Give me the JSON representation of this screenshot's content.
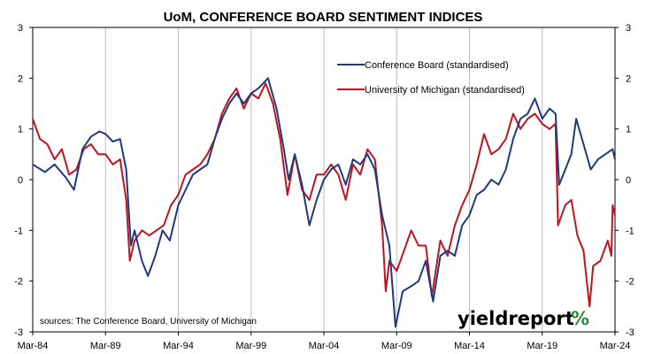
{
  "chart_data": {
    "type": "line",
    "title": "UoM, CONFERENCE BOARD SENTIMENT INDICES",
    "source": "sources: The Conference Board, University of Michigan",
    "brand": {
      "text": "yieldreport",
      "symbol": "%",
      "symbol_color": "#2e8b3a"
    },
    "x_ticks": [
      "Mar-84",
      "Mar-89",
      "Mar-94",
      "Mar-99",
      "Mar-04",
      "Mar-09",
      "Mar-14",
      "Mar-19",
      "Mar-24"
    ],
    "y_ticks_left": [
      "3",
      "2",
      "1",
      "0",
      "-1",
      "-2",
      "-3"
    ],
    "y_ticks_right": [
      "3",
      "2",
      "1",
      "0",
      "-1",
      "-2",
      "-3"
    ],
    "xlim": [
      "1984-03",
      "2024-03"
    ],
    "ylim": [
      -3,
      3
    ],
    "grid": "vertical",
    "legend_position": "top-right",
    "series": [
      {
        "name": "Conference Board (standardised)",
        "color": "#1f3a7a",
        "points": [
          [
            "1984-03",
            0.3
          ],
          [
            "1985-01",
            0.15
          ],
          [
            "1985-09",
            0.3
          ],
          [
            "1986-06",
            0.05
          ],
          [
            "1987-01",
            -0.2
          ],
          [
            "1987-08",
            0.6
          ],
          [
            "1988-03",
            0.85
          ],
          [
            "1988-10",
            0.95
          ],
          [
            "1989-03",
            0.9
          ],
          [
            "1989-09",
            0.75
          ],
          [
            "1990-03",
            0.8
          ],
          [
            "1990-08",
            0.2
          ],
          [
            "1990-12",
            -1.3
          ],
          [
            "1991-03",
            -1.0
          ],
          [
            "1991-09",
            -1.6
          ],
          [
            "1992-02",
            -1.9
          ],
          [
            "1992-08",
            -1.5
          ],
          [
            "1993-02",
            -1.0
          ],
          [
            "1993-08",
            -1.2
          ],
          [
            "1994-03",
            -0.5
          ],
          [
            "1994-09",
            -0.2
          ],
          [
            "1995-03",
            0.1
          ],
          [
            "1995-09",
            0.2
          ],
          [
            "1996-03",
            0.3
          ],
          [
            "1996-09",
            0.8
          ],
          [
            "1997-03",
            1.2
          ],
          [
            "1997-09",
            1.5
          ],
          [
            "1998-03",
            1.7
          ],
          [
            "1998-09",
            1.5
          ],
          [
            "1999-03",
            1.7
          ],
          [
            "1999-09",
            1.8
          ],
          [
            "2000-05",
            2.0
          ],
          [
            "2000-12",
            1.4
          ],
          [
            "2001-06",
            0.6
          ],
          [
            "2001-10",
            0.0
          ],
          [
            "2002-03",
            0.5
          ],
          [
            "2002-09",
            -0.1
          ],
          [
            "2003-03",
            -0.9
          ],
          [
            "2003-09",
            -0.4
          ],
          [
            "2004-03",
            0.0
          ],
          [
            "2004-09",
            0.2
          ],
          [
            "2005-03",
            0.3
          ],
          [
            "2005-09",
            -0.1
          ],
          [
            "2006-03",
            0.4
          ],
          [
            "2006-09",
            0.3
          ],
          [
            "2007-03",
            0.5
          ],
          [
            "2007-09",
            0.2
          ],
          [
            "2008-03",
            -0.7
          ],
          [
            "2008-09",
            -1.3
          ],
          [
            "2009-02",
            -2.9
          ],
          [
            "2009-08",
            -2.2
          ],
          [
            "2010-03",
            -2.1
          ],
          [
            "2010-09",
            -2.0
          ],
          [
            "2011-03",
            -1.6
          ],
          [
            "2011-09",
            -2.4
          ],
          [
            "2012-03",
            -1.5
          ],
          [
            "2012-09",
            -1.4
          ],
          [
            "2013-03",
            -1.5
          ],
          [
            "2013-09",
            -0.9
          ],
          [
            "2014-03",
            -0.7
          ],
          [
            "2014-09",
            -0.3
          ],
          [
            "2015-03",
            -0.2
          ],
          [
            "2015-09",
            0.0
          ],
          [
            "2016-03",
            -0.1
          ],
          [
            "2016-09",
            0.2
          ],
          [
            "2017-03",
            0.8
          ],
          [
            "2017-09",
            1.2
          ],
          [
            "2018-03",
            1.3
          ],
          [
            "2018-09",
            1.6
          ],
          [
            "2019-03",
            1.2
          ],
          [
            "2019-09",
            1.4
          ],
          [
            "2020-02",
            1.3
          ],
          [
            "2020-05",
            -0.1
          ],
          [
            "2020-10",
            0.2
          ],
          [
            "2021-03",
            0.5
          ],
          [
            "2021-07",
            1.2
          ],
          [
            "2022-01",
            0.7
          ],
          [
            "2022-07",
            0.2
          ],
          [
            "2023-01",
            0.4
          ],
          [
            "2023-07",
            0.5
          ],
          [
            "2024-01",
            0.6
          ],
          [
            "2024-03",
            0.4
          ]
        ]
      },
      {
        "name": "University of Michigan (standardised)",
        "color": "#c1121f",
        "points": [
          [
            "1984-03",
            1.2
          ],
          [
            "1984-09",
            0.8
          ],
          [
            "1985-03",
            0.7
          ],
          [
            "1985-09",
            0.4
          ],
          [
            "1986-03",
            0.6
          ],
          [
            "1986-09",
            0.1
          ],
          [
            "1987-03",
            0.2
          ],
          [
            "1987-09",
            0.6
          ],
          [
            "1988-03",
            0.7
          ],
          [
            "1988-09",
            0.5
          ],
          [
            "1989-03",
            0.5
          ],
          [
            "1989-09",
            0.3
          ],
          [
            "1990-03",
            0.4
          ],
          [
            "1990-08",
            -0.4
          ],
          [
            "1990-11",
            -1.6
          ],
          [
            "1991-03",
            -1.2
          ],
          [
            "1991-09",
            -1.0
          ],
          [
            "1992-03",
            -1.1
          ],
          [
            "1992-09",
            -1.0
          ],
          [
            "1993-03",
            -0.9
          ],
          [
            "1993-09",
            -0.5
          ],
          [
            "1994-03",
            -0.3
          ],
          [
            "1994-09",
            0.1
          ],
          [
            "1995-03",
            0.2
          ],
          [
            "1995-09",
            0.3
          ],
          [
            "1996-03",
            0.5
          ],
          [
            "1996-09",
            0.8
          ],
          [
            "1997-03",
            1.3
          ],
          [
            "1997-09",
            1.6
          ],
          [
            "1998-03",
            1.8
          ],
          [
            "1998-09",
            1.4
          ],
          [
            "1999-03",
            1.7
          ],
          [
            "1999-09",
            1.6
          ],
          [
            "2000-03",
            1.9
          ],
          [
            "2000-09",
            1.5
          ],
          [
            "2001-03",
            0.8
          ],
          [
            "2001-09",
            -0.3
          ],
          [
            "2002-03",
            0.5
          ],
          [
            "2002-09",
            -0.2
          ],
          [
            "2003-03",
            -0.4
          ],
          [
            "2003-09",
            0.1
          ],
          [
            "2004-03",
            0.1
          ],
          [
            "2004-09",
            0.3
          ],
          [
            "2005-03",
            0.1
          ],
          [
            "2005-09",
            -0.4
          ],
          [
            "2006-03",
            0.3
          ],
          [
            "2006-09",
            0.1
          ],
          [
            "2007-03",
            0.6
          ],
          [
            "2007-09",
            0.4
          ],
          [
            "2008-03",
            -0.9
          ],
          [
            "2008-06",
            -2.2
          ],
          [
            "2008-09",
            -1.6
          ],
          [
            "2009-03",
            -1.8
          ],
          [
            "2009-09",
            -1.4
          ],
          [
            "2010-03",
            -1.0
          ],
          [
            "2010-09",
            -1.3
          ],
          [
            "2011-03",
            -1.3
          ],
          [
            "2011-08",
            -2.3
          ],
          [
            "2012-03",
            -1.2
          ],
          [
            "2012-09",
            -1.5
          ],
          [
            "2013-03",
            -0.9
          ],
          [
            "2013-09",
            -0.5
          ],
          [
            "2014-03",
            -0.2
          ],
          [
            "2014-09",
            0.3
          ],
          [
            "2015-03",
            0.9
          ],
          [
            "2015-09",
            0.5
          ],
          [
            "2016-03",
            0.6
          ],
          [
            "2016-09",
            0.8
          ],
          [
            "2017-03",
            1.3
          ],
          [
            "2017-09",
            1.0
          ],
          [
            "2018-03",
            1.2
          ],
          [
            "2018-09",
            1.3
          ],
          [
            "2019-03",
            1.1
          ],
          [
            "2019-09",
            1.0
          ],
          [
            "2020-02",
            1.1
          ],
          [
            "2020-04",
            -0.9
          ],
          [
            "2020-10",
            -0.5
          ],
          [
            "2021-03",
            -0.4
          ],
          [
            "2021-08",
            -1.1
          ],
          [
            "2022-01",
            -1.4
          ],
          [
            "2022-06",
            -2.5
          ],
          [
            "2022-09",
            -1.7
          ],
          [
            "2023-03",
            -1.6
          ],
          [
            "2023-09",
            -1.2
          ],
          [
            "2023-12",
            -1.5
          ],
          [
            "2024-01",
            -0.5
          ],
          [
            "2024-03",
            -0.7
          ]
        ]
      }
    ]
  }
}
